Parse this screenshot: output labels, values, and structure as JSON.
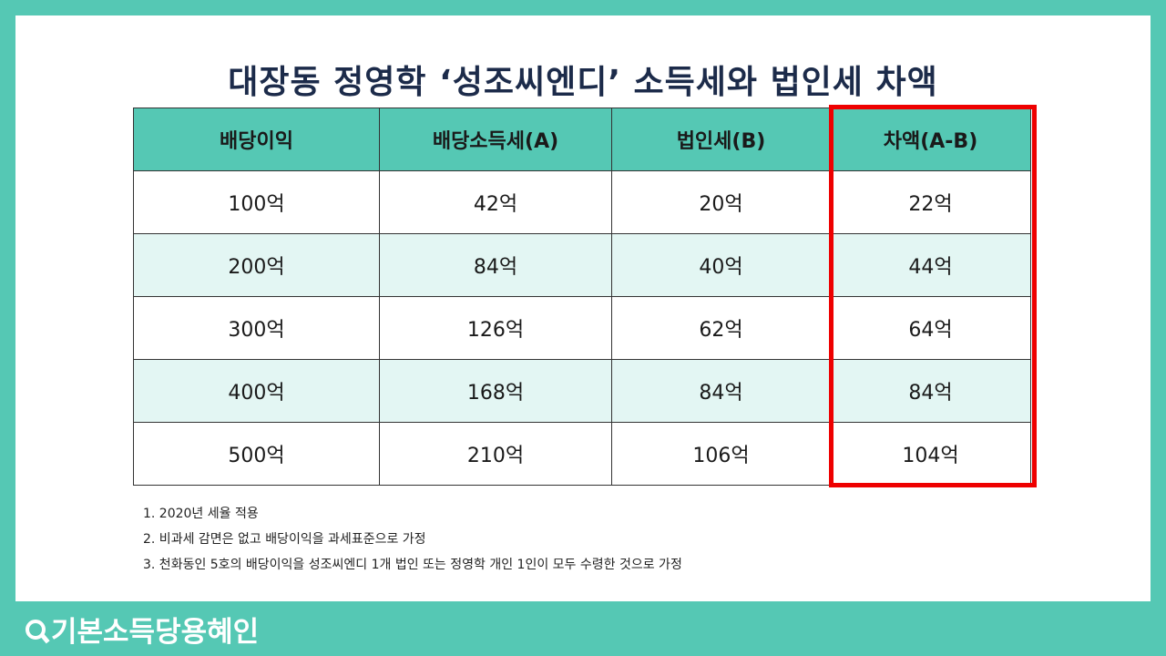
{
  "title": "대장동 정영학 ‘성조씨엔디’ 소득세와 법인세 차액",
  "table": {
    "headers": [
      "배당이익",
      "배당소득세(A)",
      "법인세(B)",
      "차액(A-B)"
    ],
    "rows": [
      [
        "100억",
        "42억",
        "20억",
        "22억"
      ],
      [
        "200억",
        "84억",
        "40억",
        "44억"
      ],
      [
        "300억",
        "126억",
        "62억",
        "64억"
      ],
      [
        "400억",
        "168억",
        "84억",
        "84억"
      ],
      [
        "500억",
        "210억",
        "106억",
        "104억"
      ]
    ]
  },
  "notes": [
    "1. 2020년 세율 적용",
    "2. 비과세 감면은 없고 배당이익을 과세표준으로 가정",
    "3. 천화동인 5호의 배당이익을 성조씨엔디 1개 법인 또는 정영학 개인 1인이 모두 수령한 것으로 가정"
  ],
  "brand": "기본소득당용혜인",
  "colors": {
    "accent": "#55c8b4",
    "alt_row": "#e3f6f3",
    "highlight": "#ee0000",
    "title": "#1c2b4a"
  },
  "icons": {
    "brand_logo": "magnifier-icon"
  }
}
